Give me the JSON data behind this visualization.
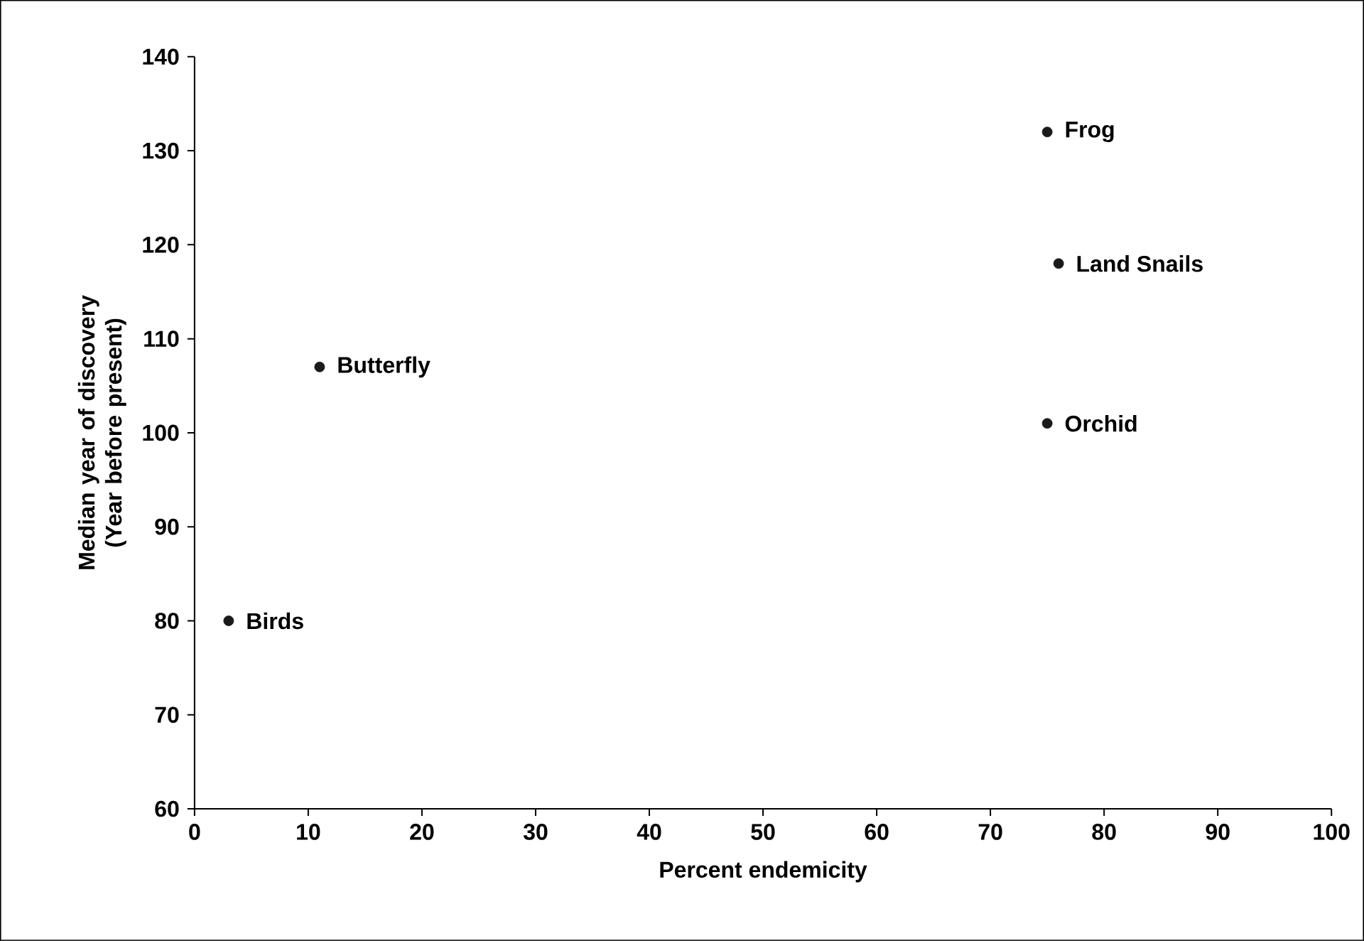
{
  "chart_data": {
    "type": "scatter",
    "xlabel": "Percent endemicity",
    "ylabel": "Median year of discovery (Year before present)",
    "marker": "circle",
    "grid": false,
    "legend": false,
    "xlim": [
      0,
      100
    ],
    "xticks": [
      0,
      10,
      20,
      30,
      40,
      50,
      60,
      70,
      80,
      90,
      100
    ],
    "ylim": [
      60,
      140
    ],
    "yticks": [
      60,
      70,
      80,
      90,
      100,
      110,
      120,
      130,
      140
    ],
    "series": [
      {
        "name": "Birds",
        "color": "#1a1a1a",
        "x": [
          3
        ],
        "values": [
          80
        ]
      },
      {
        "name": "Butterfly",
        "color": "#1a1a1a",
        "x": [
          11
        ],
        "values": [
          107
        ]
      },
      {
        "name": "Frog",
        "color": "#1a1a1a",
        "x": [
          75
        ],
        "values": [
          132
        ]
      },
      {
        "name": "Land Snails",
        "color": "#1a1a1a",
        "x": [
          76
        ],
        "values": [
          118
        ]
      },
      {
        "name": "Orchid",
        "color": "#1a1a1a",
        "x": [
          75
        ],
        "values": [
          101
        ]
      }
    ]
  }
}
